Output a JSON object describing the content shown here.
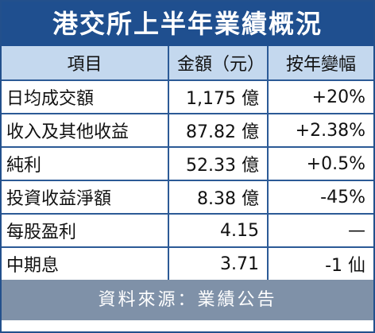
{
  "header": {
    "title": "港交所上半年業績概況"
  },
  "table": {
    "columns": [
      "項目",
      "金額（元）",
      "按年變幅"
    ],
    "rows": [
      [
        "日均成交額",
        "1,175 億",
        "+20%"
      ],
      [
        "收入及其他收益",
        "87.82 億",
        "+2.38%"
      ],
      [
        "純利",
        "52.33 億",
        "+0.5%"
      ],
      [
        "投資收益淨額",
        "8.38 億",
        "-45%"
      ],
      [
        "每股盈利",
        "4.15",
        "—"
      ],
      [
        "中期息",
        "3.71",
        "-1 仙"
      ]
    ]
  },
  "footer": {
    "source": "資料來源：業績公告"
  }
}
